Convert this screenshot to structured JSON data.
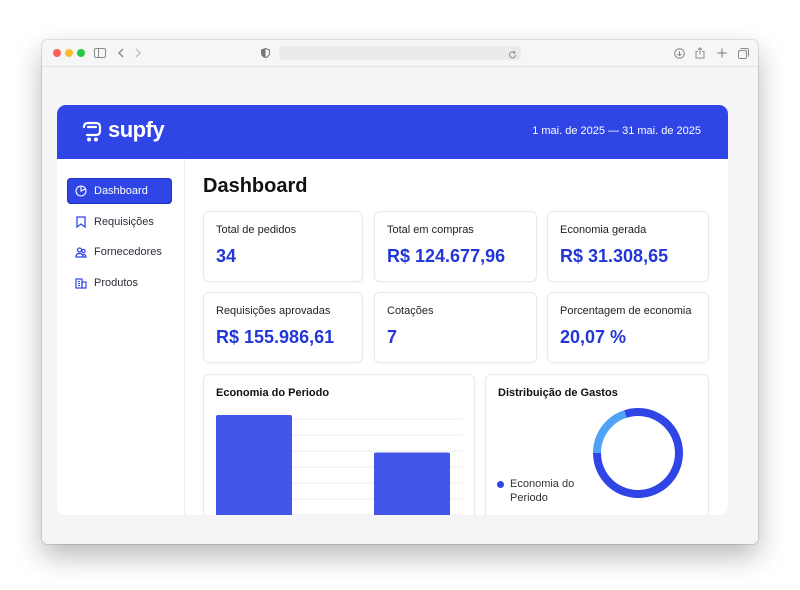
{
  "browser": {
    "toolbar_icons": [
      "sidebar-icon",
      "back-icon",
      "forward-icon",
      "privacy-shield-icon",
      "reload-icon",
      "downloads-icon",
      "share-icon",
      "new-tab-icon",
      "tabs-overview-icon"
    ]
  },
  "header": {
    "brand": "supfy",
    "date_range": "1 mai. de 2025 — 31 mai. de 2025"
  },
  "sidebar": {
    "items": [
      {
        "label": "Dashboard",
        "icon": "pie-chart-icon",
        "active": true
      },
      {
        "label": "Requisições",
        "icon": "bookmark-icon",
        "active": false
      },
      {
        "label": "Fornecedores",
        "icon": "users-icon",
        "active": false
      },
      {
        "label": "Produtos",
        "icon": "building-icon",
        "active": false
      }
    ]
  },
  "main": {
    "title": "Dashboard",
    "stats": [
      {
        "label": "Total de pedidos",
        "value": "34"
      },
      {
        "label": "Total em compras",
        "value": "R$ 124.677,96"
      },
      {
        "label": "Economia gerada",
        "value": "R$ 31.308,65"
      },
      {
        "label": "Requisições aprovadas",
        "value": "R$ 155.986,61"
      },
      {
        "label": "Cotações",
        "value": "7"
      },
      {
        "label": "Porcentagem de economia",
        "value": "20,07 %"
      }
    ],
    "economy_panel": {
      "title": "Economia do Periodo"
    },
    "distribution_panel": {
      "title": "Distribuição de Gastos",
      "legend": "Economia do Periodo"
    }
  },
  "colors": {
    "brand": "#2f45e6",
    "bar": "#4356ea",
    "donut_main": "#2f45e6",
    "donut_light": "#4fa3f5",
    "value_text": "#2237d6"
  },
  "chart_data": [
    {
      "type": "bar",
      "title": "Economia do Periodo",
      "categories": [
        "",
        ""
      ],
      "values": [
        100,
        75
      ],
      "ylim": [
        0,
        100
      ]
    },
    {
      "type": "pie",
      "title": "Distribuição de Gastos",
      "labels": [
        "Economia do Periodo",
        ""
      ],
      "values": [
        80,
        20
      ]
    }
  ]
}
